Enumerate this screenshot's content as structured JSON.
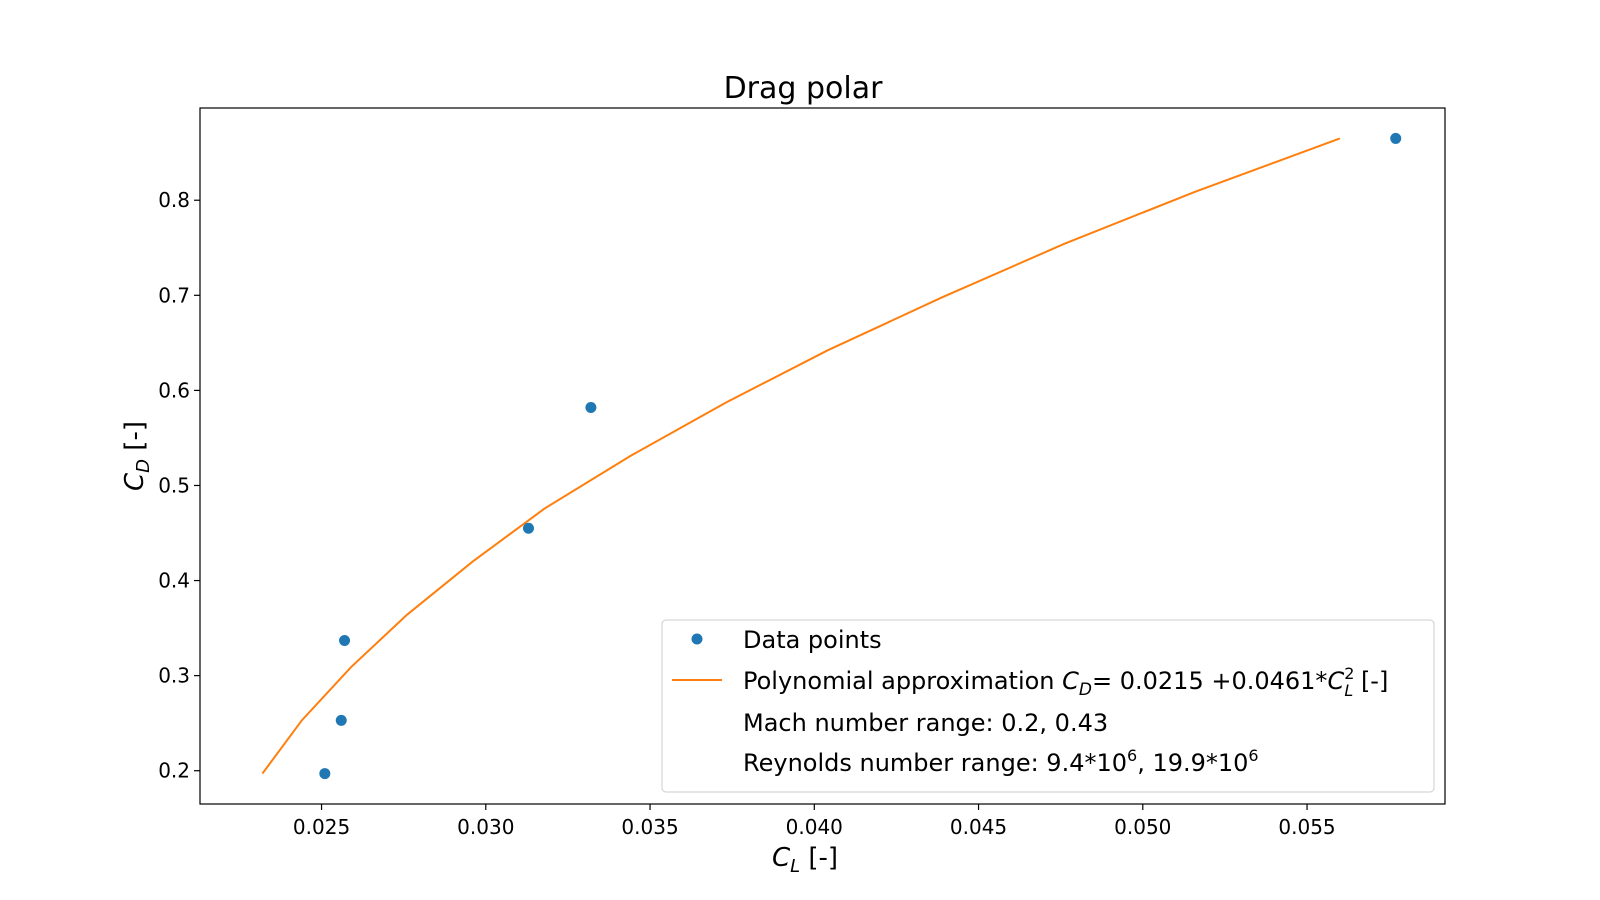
{
  "chart_data": {
    "type": "scatter",
    "title": "Drag polar",
    "xlabel": {
      "main": "C",
      "sub": "L",
      "suffix": " [-]"
    },
    "ylabel": {
      "main": "C",
      "sub": "D",
      "suffix": " [-]"
    },
    "xlim": [
      0.0213,
      0.0592
    ],
    "ylim": [
      0.165,
      0.897
    ],
    "x_ticks": [
      "0.025",
      "0.030",
      "0.035",
      "0.040",
      "0.045",
      "0.050",
      "0.055"
    ],
    "x_tick_values": [
      0.025,
      0.03,
      0.035,
      0.04,
      0.045,
      0.05,
      0.055
    ],
    "y_ticks": [
      "0.2",
      "0.3",
      "0.4",
      "0.5",
      "0.6",
      "0.7",
      "0.8"
    ],
    "y_tick_values": [
      0.2,
      0.3,
      0.4,
      0.5,
      0.6,
      0.7,
      0.8
    ],
    "grid": false,
    "legend_position": "bottom-right",
    "colors": {
      "points": "#1f77b4",
      "fit": "#ff7f0e"
    },
    "series": [
      {
        "name": "Data points",
        "kind": "markers",
        "x": [
          0.0251,
          0.0256,
          0.0257,
          0.0313,
          0.0332,
          0.0577
        ],
        "y": [
          0.197,
          0.253,
          0.337,
          0.455,
          0.582,
          0.865
        ]
      },
      {
        "name": "Polynomial approximation",
        "kind": "line",
        "x": [
          0.0232,
          0.0244,
          0.0259,
          0.0276,
          0.0296,
          0.0318,
          0.0344,
          0.0373,
          0.0404,
          0.0439,
          0.0476,
          0.0516,
          0.056
        ],
        "y": [
          0.197,
          0.253,
          0.309,
          0.364,
          0.42,
          0.476,
          0.531,
          0.587,
          0.642,
          0.698,
          0.754,
          0.809,
          0.865
        ]
      }
    ],
    "legend": {
      "entries": [
        {
          "label": "Data points"
        },
        {
          "label_parts": {
            "prefix": "Polynomial approximation ",
            "cd_main": "C",
            "cd_sub": "D",
            "middle": "= 0.0215 +0.0461*",
            "cl_main": "C",
            "cl_sup": "2",
            "cl_sub": "L",
            "suffix": " [-]"
          }
        }
      ],
      "notes": [
        {
          "text": "Mach number range: 0.2, 0.43"
        },
        {
          "parts": {
            "a": "Reynolds number range: 9.4*10",
            "exp1": "6",
            "b": ", 19.9*10",
            "exp2": "6"
          }
        }
      ]
    }
  }
}
